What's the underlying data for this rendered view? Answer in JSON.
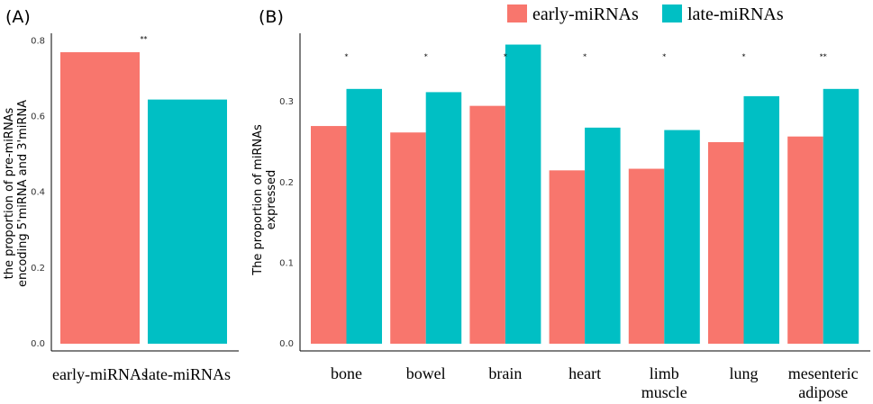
{
  "legend": {
    "items": [
      {
        "label": "early-miRNAs",
        "color": "#F8766D"
      },
      {
        "label": "late-miRNAs",
        "color": "#00BFC4"
      }
    ]
  },
  "chart_data": [
    {
      "panel_label": "(A)",
      "type": "bar",
      "categories": [
        "early-miRNAs",
        "late-miRNAs"
      ],
      "values": [
        0.77,
        0.645
      ],
      "colors": [
        "#F8766D",
        "#00BFC4"
      ],
      "ylabel_lines": [
        "the proportion of pre-miRNAs",
        "encoding 5'miRNA and 3'miRNA"
      ],
      "ylim": [
        0,
        0.82
      ],
      "yticks": [
        0.0,
        0.2,
        0.4,
        0.6,
        0.8
      ],
      "ytick_labels": [
        "0.0",
        "0.2",
        "0.4",
        "0.6",
        "0.8"
      ],
      "annotations": [
        "**"
      ]
    },
    {
      "panel_label": "(B)",
      "type": "bar",
      "categories": [
        "bone",
        "bowel",
        "brain",
        "heart",
        "limb muscle",
        "lung",
        "mesenteric adipose"
      ],
      "category_lines": [
        [
          "bone"
        ],
        [
          "bowel"
        ],
        [
          "brain"
        ],
        [
          "heart"
        ],
        [
          "limb",
          "muscle"
        ],
        [
          "lung"
        ],
        [
          "mesenteric",
          "adipose"
        ]
      ],
      "series": [
        {
          "name": "early-miRNAs",
          "color": "#F8766D",
          "values": [
            0.27,
            0.262,
            0.295,
            0.215,
            0.217,
            0.25,
            0.257
          ]
        },
        {
          "name": "late-miRNAs",
          "color": "#00BFC4",
          "values": [
            0.316,
            0.312,
            0.371,
            0.268,
            0.265,
            0.307,
            0.316
          ]
        }
      ],
      "ylabel_lines": [
        "The proportion of miRNAs",
        "expressed"
      ],
      "ylim": [
        0,
        0.385
      ],
      "yticks": [
        0.0,
        0.1,
        0.2,
        0.3
      ],
      "ytick_labels": [
        "0.0",
        "0.1",
        "0.2",
        "0.3"
      ],
      "annotations": [
        "*",
        "*",
        "*",
        "*",
        "*",
        "*",
        "**"
      ]
    }
  ]
}
